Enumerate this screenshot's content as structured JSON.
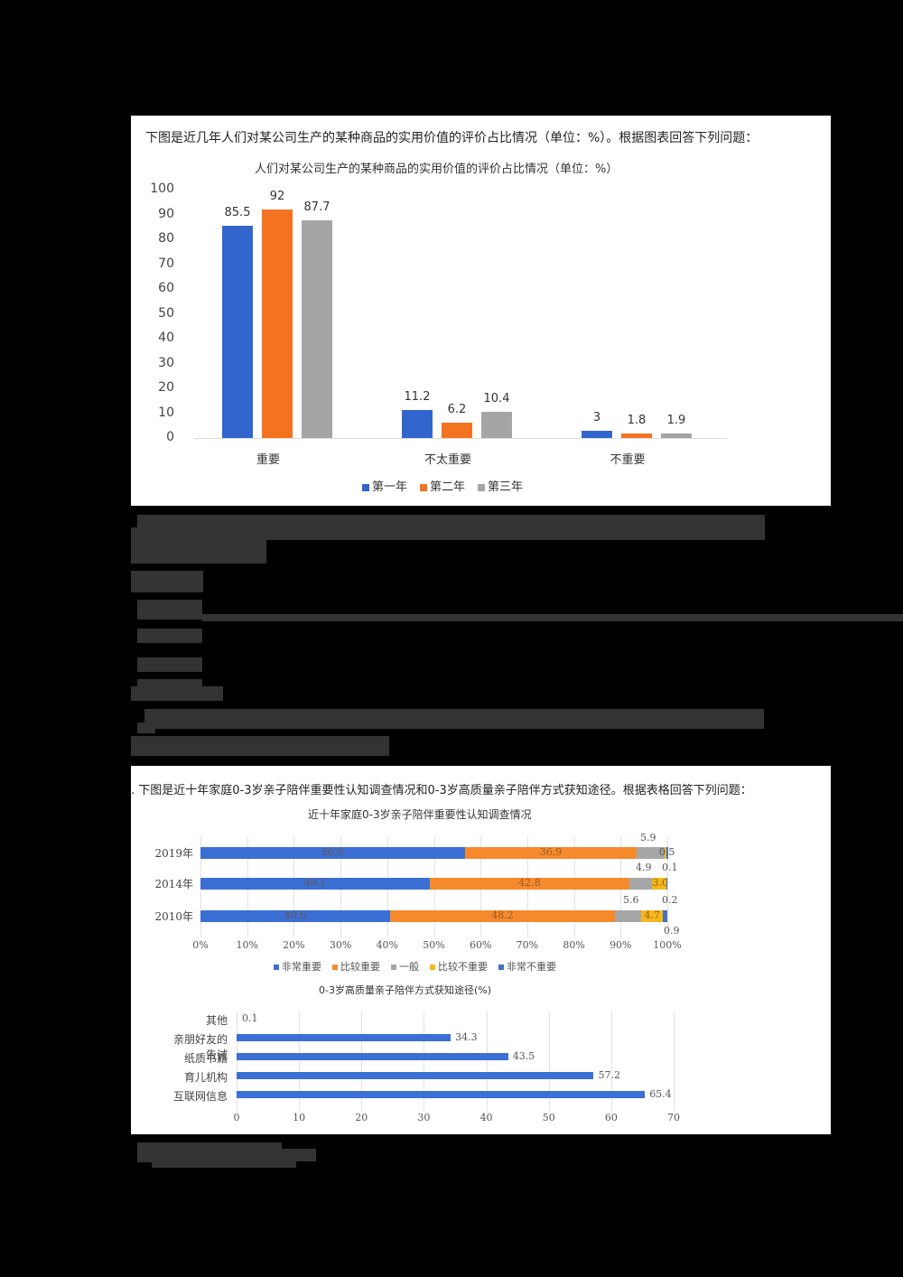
{
  "question1": {
    "prompt": "下图是近几年人们对某公司生产的某种商品的实用价值的评价占比情况（单位：%）。根据图表回答下列问题：",
    "chart_title": "人们对某公司生产的某种商品的实用价值的评价占比情况（单位：%）"
  },
  "question2": {
    "prompt": ". 下图是近十年家庭0-3岁亲子陪伴重要性认知调查情况和0-3岁高质量亲子陪伴方式获知途径。根据表格回答下列问题：",
    "chart1_title": "近十年家庭0-3岁亲子陪伴重要性认知调查情况",
    "chart2_title": "0-3岁高质量亲子陪伴方式获知途径(%)"
  },
  "chart_data": [
    {
      "type": "bar",
      "title": "人们对某公司生产的某种商品的实用价值的评价占比情况（单位：%）",
      "categories": [
        "重要",
        "不太重要",
        "不重要"
      ],
      "series": [
        {
          "name": "第一年",
          "color": "#3366cc",
          "values": [
            85.5,
            11.2,
            3
          ]
        },
        {
          "name": "第二年",
          "color": "#f47321",
          "values": [
            92,
            6.2,
            1.8
          ]
        },
        {
          "name": "第三年",
          "color": "#a5a5a5",
          "values": [
            87.7,
            10.4,
            1.9
          ]
        }
      ],
      "yticks": [
        "100",
        "90",
        "80",
        "70",
        "60",
        "50",
        "40",
        "30",
        "20",
        "10",
        "0"
      ],
      "ylim": [
        0,
        100
      ],
      "xlabel": "",
      "ylabel": "",
      "grid": false,
      "legend_position": "bottom"
    },
    {
      "type": "bar",
      "orientation": "horizontal-stacked-percent",
      "title": "近十年家庭0-3岁亲子陪伴重要性认知调查情况",
      "categories": [
        "2019年",
        "2014年",
        "2010年"
      ],
      "series": [
        {
          "name": "非常重要",
          "color": "#3b6fd4",
          "values": [
            56.6,
            49.1,
            40.6
          ]
        },
        {
          "name": "比较重要",
          "color": "#f58a2d",
          "values": [
            36.9,
            42.8,
            48.2
          ]
        },
        {
          "name": "一般",
          "color": "#a6a6a6",
          "values": [
            5.9,
            4.9,
            5.6
          ]
        },
        {
          "name": "比较不重要",
          "color": "#f5b81c",
          "values": [
            0.5,
            3.0,
            4.7
          ]
        },
        {
          "name": "非常不重要",
          "color": "#4472c4",
          "values": [
            0.1,
            0.2,
            0.9
          ]
        }
      ],
      "xticks": [
        "0%",
        "10%",
        "20%",
        "30%",
        "40%",
        "50%",
        "60%",
        "70%",
        "80%",
        "90%",
        "100%"
      ],
      "xlim": [
        0,
        100
      ],
      "grid": true,
      "legend_position": "bottom"
    },
    {
      "type": "bar",
      "orientation": "horizontal",
      "title": "0-3岁高质量亲子陪伴方式获知途径(%)",
      "categories": [
        "其他",
        "亲朋好友的告诫",
        "纸质书籍",
        "育儿机构",
        "互联网信息"
      ],
      "values": [
        0.1,
        34.3,
        43.5,
        57.2,
        65.4
      ],
      "color": "#3b6fd4",
      "xticks": [
        "0",
        "10",
        "20",
        "30",
        "40",
        "50",
        "60",
        "70"
      ],
      "xlim": [
        0,
        70
      ],
      "grid": true
    }
  ]
}
